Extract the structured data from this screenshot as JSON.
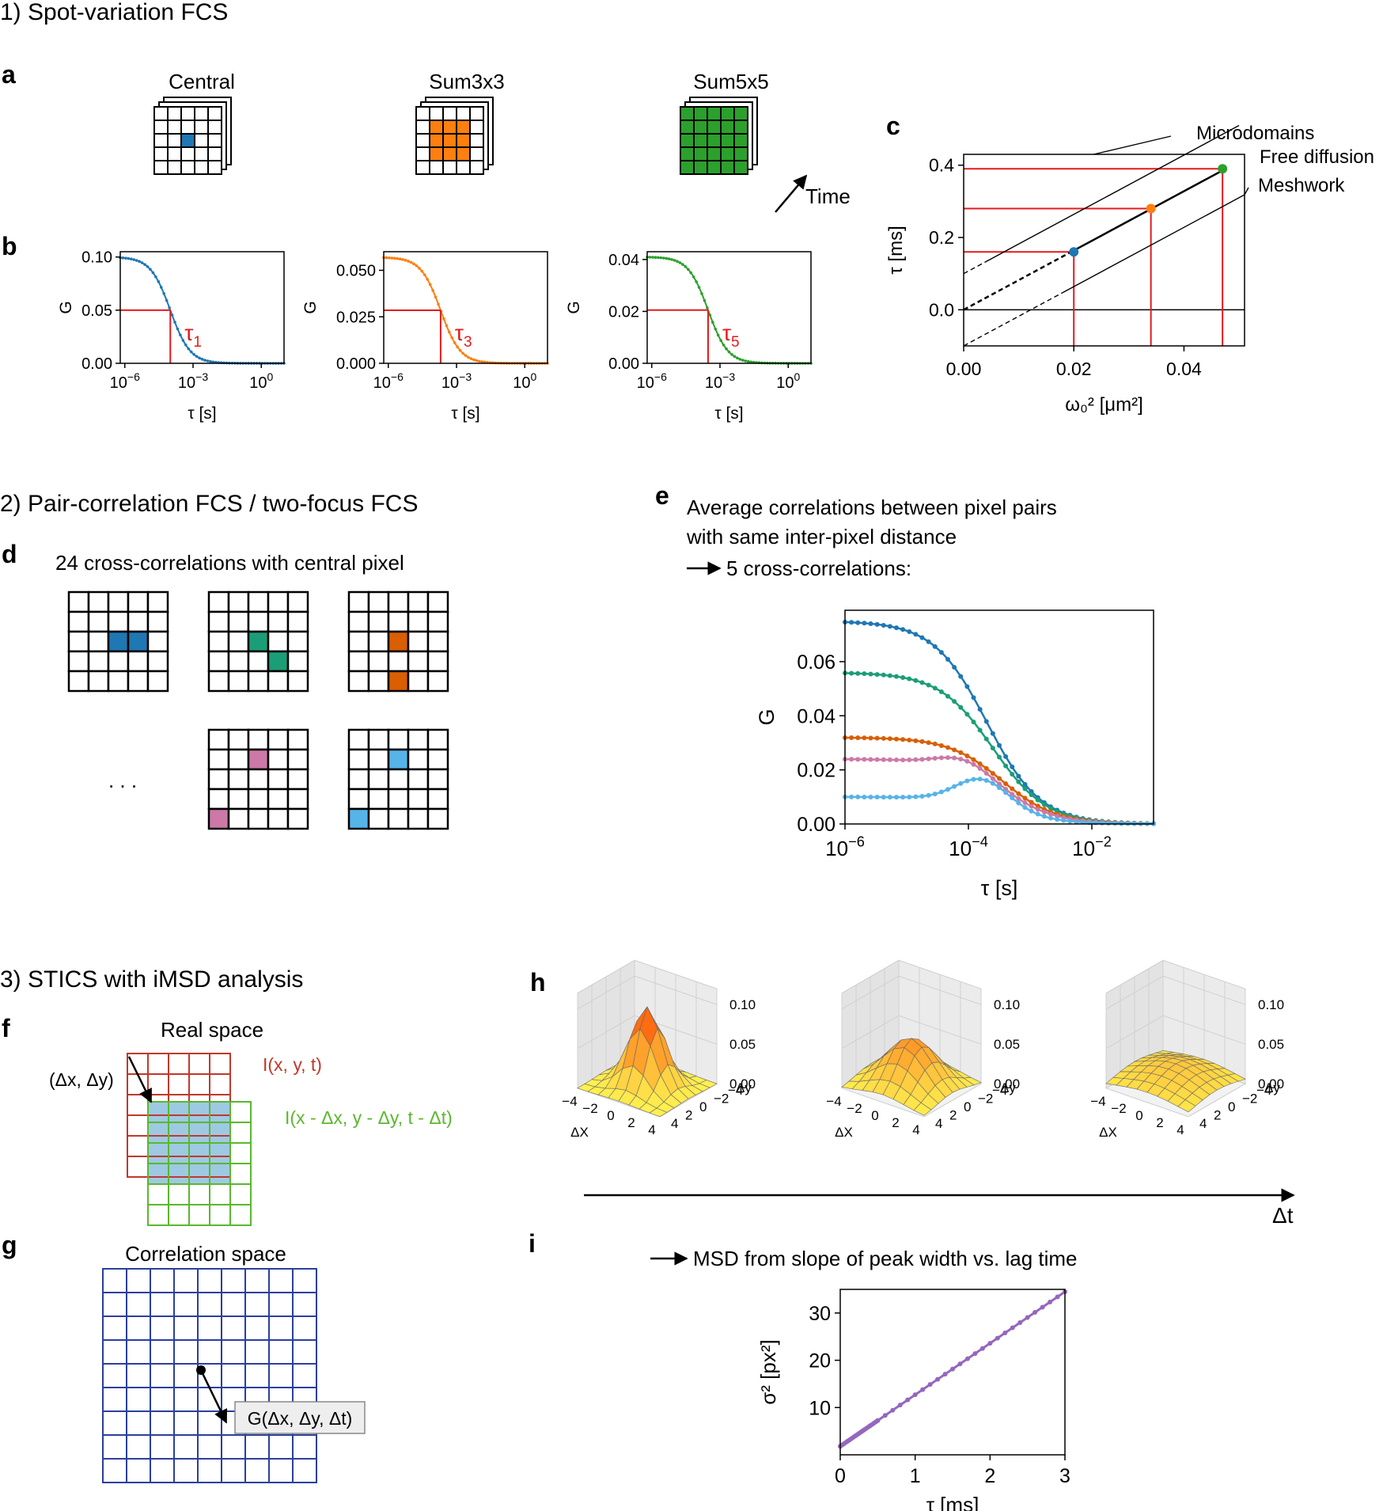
{
  "sections": {
    "s1": "1) Spot-variation FCS",
    "s2": "2) Pair-correlation FCS / two-focus FCS",
    "s3": "3) STICS with iMSD analysis"
  },
  "panels": {
    "a": "a",
    "b": "b",
    "c": "c",
    "d": "d",
    "e": "e",
    "f": "f",
    "g": "g",
    "h": "h",
    "i": "i"
  },
  "panel_a": {
    "labels": [
      "Central",
      "Sum3x3",
      "Sum5x5"
    ],
    "time": "Time"
  },
  "panel_c": {
    "line_labels": [
      "Microdomains",
      "Free diffusion",
      "Meshwork"
    ]
  },
  "panel_d": {
    "title": "24 cross-correlations with central pixel",
    "ellipsis": ". . ."
  },
  "panel_e": {
    "line1": "Average correlations between pixel pairs",
    "line2": "with same inter-pixel distance",
    "line3": "5 cross-correlations:"
  },
  "panel_f": {
    "title": "Real space",
    "shift": "(Δx, Δy)",
    "img1": "I(x, y, t)",
    "img2": "I(x - Δx, y - Δy, t - Δt)"
  },
  "panel_g": {
    "title": "Correlation space",
    "box": "G(Δx, Δy, Δt)"
  },
  "panel_h": {
    "zticks": [
      "0.10",
      "0.05",
      "0.00"
    ],
    "xticks": [
      "−4",
      "−2",
      "0",
      "2",
      "4"
    ],
    "yticks": [
      "4",
      "2",
      "0",
      "−2",
      "−4"
    ],
    "xlabel": "ΔX",
    "ylabel": "Δy",
    "dt": "Δt"
  },
  "panel_i": {
    "title": "MSD from slope of peak width vs. lag time"
  },
  "colors": {
    "blue": "#1f77b4",
    "orange": "#ff7f0e",
    "green": "#2ca02c",
    "red": "#e41a1c",
    "teal": "#1b9e77",
    "darkorange": "#d95f02",
    "pink": "#cc79a7",
    "skyblue": "#56b4e9",
    "purple": "#9467bd",
    "navy": "#2b3f9e",
    "gridred": "#c0392b",
    "gridgreen": "#5ab82e",
    "lightblue": "#9ec9e2"
  },
  "chart_data": [
    {
      "id": "b1",
      "type": "line",
      "xscale": "log",
      "xlabel": "τ [s]",
      "ylabel": "G",
      "xticks": [
        "10−6",
        "10−3",
        "100"
      ],
      "yticks": [
        "0.00",
        "0.05",
        "0.10"
      ],
      "ylim": [
        0,
        0.105
      ],
      "amplitude": 0.1,
      "tau": 0.0001,
      "series": [
        {
          "name": "Central",
          "color": "#1f77b4"
        }
      ],
      "annotation": "τ1"
    },
    {
      "id": "b2",
      "type": "line",
      "xscale": "log",
      "xlabel": "τ [s]",
      "ylabel": "G",
      "xticks": [
        "10−6",
        "10−3",
        "100"
      ],
      "yticks": [
        "0.000",
        "0.025",
        "0.050"
      ],
      "ylim": [
        0,
        0.06
      ],
      "amplitude": 0.057,
      "tau": 0.0002,
      "series": [
        {
          "name": "Sum3x3",
          "color": "#ff7f0e"
        }
      ],
      "annotation": "τ3"
    },
    {
      "id": "b3",
      "type": "line",
      "xscale": "log",
      "xlabel": "τ [s]",
      "ylabel": "G",
      "xticks": [
        "10−6",
        "10−3",
        "100"
      ],
      "yticks": [
        "0.00",
        "0.02",
        "0.04"
      ],
      "ylim": [
        0,
        0.043
      ],
      "amplitude": 0.041,
      "tau": 0.0003,
      "series": [
        {
          "name": "Sum5x5",
          "color": "#2ca02c"
        }
      ],
      "annotation": "τ5"
    },
    {
      "id": "c",
      "type": "scatter",
      "xlabel": "ω₀² [μm²]",
      "ylabel": "τ [ms]",
      "xticks": [
        "0.00",
        "0.02",
        "0.04"
      ],
      "yticks": [
        "0.0",
        "0.2",
        "0.4"
      ],
      "xlim": [
        0,
        0.051
      ],
      "ylim": [
        -0.1,
        0.43
      ],
      "points": [
        {
          "x": 0.02,
          "y": 0.16,
          "color": "#1f77b4"
        },
        {
          "x": 0.034,
          "y": 0.28,
          "color": "#ff7f0e"
        },
        {
          "x": 0.047,
          "y": 0.39,
          "color": "#2ca02c"
        }
      ],
      "lines": [
        {
          "name": "Microdomains",
          "intercept": 0.1,
          "slope": 8.2
        },
        {
          "name": "Free diffusion",
          "intercept": 0.0,
          "slope": 8.2
        },
        {
          "name": "Meshwork",
          "intercept": -0.1,
          "slope": 8.2
        }
      ]
    },
    {
      "id": "e",
      "type": "line",
      "xscale": "log",
      "xlabel": "τ [s]",
      "ylabel": "G",
      "xticks": [
        "10−6",
        "10−4",
        "10−2"
      ],
      "yticks": [
        "0.00",
        "0.02",
        "0.04",
        "0.06"
      ],
      "ylim": [
        0,
        0.079
      ],
      "series": [
        {
          "color": "#1f77b4",
          "amp": 0.075,
          "tau": 0.0002,
          "bump": 0,
          "bumpc": 0
        },
        {
          "color": "#1b9e77",
          "amp": 0.056,
          "tau": 0.00025,
          "bump": 0,
          "bumpc": 0
        },
        {
          "color": "#d95f02",
          "amp": 0.032,
          "tau": 0.00035,
          "bump": 0,
          "bumpc": 0
        },
        {
          "color": "#cc79a7",
          "amp": 0.024,
          "tau": 0.00038,
          "bump": 0.004,
          "bumpc": 9e-05
        },
        {
          "color": "#56b4e9",
          "amp": 0.01,
          "tau": 0.0005,
          "bump": 0.009,
          "bumpc": 0.00017
        }
      ]
    },
    {
      "id": "i",
      "type": "line",
      "xlabel": "τ [ms]",
      "ylabel": "σ² [px²]",
      "xticks": [
        "0",
        "1",
        "2",
        "3"
      ],
      "yticks": [
        "10",
        "20",
        "30"
      ],
      "xlim": [
        0,
        3
      ],
      "ylim": [
        0,
        35
      ],
      "intercept": 1.8,
      "slope": 10.9,
      "series": [
        {
          "color": "#9467bd"
        }
      ]
    }
  ]
}
